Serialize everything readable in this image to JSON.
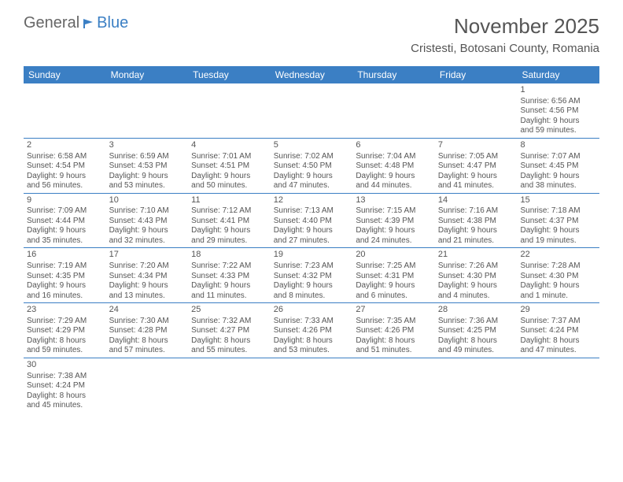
{
  "logo": {
    "general": "General",
    "blue": "Blue"
  },
  "title": "November 2025",
  "subtitle": "Cristesti, Botosani County, Romania",
  "colors": {
    "header_bg": "#3b7fc4",
    "header_text": "#ffffff",
    "border": "#3b7fc4",
    "text": "#555555"
  },
  "day_headers": [
    "Sunday",
    "Monday",
    "Tuesday",
    "Wednesday",
    "Thursday",
    "Friday",
    "Saturday"
  ],
  "weeks": [
    [
      null,
      null,
      null,
      null,
      null,
      null,
      {
        "n": "1",
        "sr": "Sunrise: 6:56 AM",
        "ss": "Sunset: 4:56 PM",
        "d1": "Daylight: 9 hours",
        "d2": "and 59 minutes."
      }
    ],
    [
      {
        "n": "2",
        "sr": "Sunrise: 6:58 AM",
        "ss": "Sunset: 4:54 PM",
        "d1": "Daylight: 9 hours",
        "d2": "and 56 minutes."
      },
      {
        "n": "3",
        "sr": "Sunrise: 6:59 AM",
        "ss": "Sunset: 4:53 PM",
        "d1": "Daylight: 9 hours",
        "d2": "and 53 minutes."
      },
      {
        "n": "4",
        "sr": "Sunrise: 7:01 AM",
        "ss": "Sunset: 4:51 PM",
        "d1": "Daylight: 9 hours",
        "d2": "and 50 minutes."
      },
      {
        "n": "5",
        "sr": "Sunrise: 7:02 AM",
        "ss": "Sunset: 4:50 PM",
        "d1": "Daylight: 9 hours",
        "d2": "and 47 minutes."
      },
      {
        "n": "6",
        "sr": "Sunrise: 7:04 AM",
        "ss": "Sunset: 4:48 PM",
        "d1": "Daylight: 9 hours",
        "d2": "and 44 minutes."
      },
      {
        "n": "7",
        "sr": "Sunrise: 7:05 AM",
        "ss": "Sunset: 4:47 PM",
        "d1": "Daylight: 9 hours",
        "d2": "and 41 minutes."
      },
      {
        "n": "8",
        "sr": "Sunrise: 7:07 AM",
        "ss": "Sunset: 4:45 PM",
        "d1": "Daylight: 9 hours",
        "d2": "and 38 minutes."
      }
    ],
    [
      {
        "n": "9",
        "sr": "Sunrise: 7:09 AM",
        "ss": "Sunset: 4:44 PM",
        "d1": "Daylight: 9 hours",
        "d2": "and 35 minutes."
      },
      {
        "n": "10",
        "sr": "Sunrise: 7:10 AM",
        "ss": "Sunset: 4:43 PM",
        "d1": "Daylight: 9 hours",
        "d2": "and 32 minutes."
      },
      {
        "n": "11",
        "sr": "Sunrise: 7:12 AM",
        "ss": "Sunset: 4:41 PM",
        "d1": "Daylight: 9 hours",
        "d2": "and 29 minutes."
      },
      {
        "n": "12",
        "sr": "Sunrise: 7:13 AM",
        "ss": "Sunset: 4:40 PM",
        "d1": "Daylight: 9 hours",
        "d2": "and 27 minutes."
      },
      {
        "n": "13",
        "sr": "Sunrise: 7:15 AM",
        "ss": "Sunset: 4:39 PM",
        "d1": "Daylight: 9 hours",
        "d2": "and 24 minutes."
      },
      {
        "n": "14",
        "sr": "Sunrise: 7:16 AM",
        "ss": "Sunset: 4:38 PM",
        "d1": "Daylight: 9 hours",
        "d2": "and 21 minutes."
      },
      {
        "n": "15",
        "sr": "Sunrise: 7:18 AM",
        "ss": "Sunset: 4:37 PM",
        "d1": "Daylight: 9 hours",
        "d2": "and 19 minutes."
      }
    ],
    [
      {
        "n": "16",
        "sr": "Sunrise: 7:19 AM",
        "ss": "Sunset: 4:35 PM",
        "d1": "Daylight: 9 hours",
        "d2": "and 16 minutes."
      },
      {
        "n": "17",
        "sr": "Sunrise: 7:20 AM",
        "ss": "Sunset: 4:34 PM",
        "d1": "Daylight: 9 hours",
        "d2": "and 13 minutes."
      },
      {
        "n": "18",
        "sr": "Sunrise: 7:22 AM",
        "ss": "Sunset: 4:33 PM",
        "d1": "Daylight: 9 hours",
        "d2": "and 11 minutes."
      },
      {
        "n": "19",
        "sr": "Sunrise: 7:23 AM",
        "ss": "Sunset: 4:32 PM",
        "d1": "Daylight: 9 hours",
        "d2": "and 8 minutes."
      },
      {
        "n": "20",
        "sr": "Sunrise: 7:25 AM",
        "ss": "Sunset: 4:31 PM",
        "d1": "Daylight: 9 hours",
        "d2": "and 6 minutes."
      },
      {
        "n": "21",
        "sr": "Sunrise: 7:26 AM",
        "ss": "Sunset: 4:30 PM",
        "d1": "Daylight: 9 hours",
        "d2": "and 4 minutes."
      },
      {
        "n": "22",
        "sr": "Sunrise: 7:28 AM",
        "ss": "Sunset: 4:30 PM",
        "d1": "Daylight: 9 hours",
        "d2": "and 1 minute."
      }
    ],
    [
      {
        "n": "23",
        "sr": "Sunrise: 7:29 AM",
        "ss": "Sunset: 4:29 PM",
        "d1": "Daylight: 8 hours",
        "d2": "and 59 minutes."
      },
      {
        "n": "24",
        "sr": "Sunrise: 7:30 AM",
        "ss": "Sunset: 4:28 PM",
        "d1": "Daylight: 8 hours",
        "d2": "and 57 minutes."
      },
      {
        "n": "25",
        "sr": "Sunrise: 7:32 AM",
        "ss": "Sunset: 4:27 PM",
        "d1": "Daylight: 8 hours",
        "d2": "and 55 minutes."
      },
      {
        "n": "26",
        "sr": "Sunrise: 7:33 AM",
        "ss": "Sunset: 4:26 PM",
        "d1": "Daylight: 8 hours",
        "d2": "and 53 minutes."
      },
      {
        "n": "27",
        "sr": "Sunrise: 7:35 AM",
        "ss": "Sunset: 4:26 PM",
        "d1": "Daylight: 8 hours",
        "d2": "and 51 minutes."
      },
      {
        "n": "28",
        "sr": "Sunrise: 7:36 AM",
        "ss": "Sunset: 4:25 PM",
        "d1": "Daylight: 8 hours",
        "d2": "and 49 minutes."
      },
      {
        "n": "29",
        "sr": "Sunrise: 7:37 AM",
        "ss": "Sunset: 4:24 PM",
        "d1": "Daylight: 8 hours",
        "d2": "and 47 minutes."
      }
    ],
    [
      {
        "n": "30",
        "sr": "Sunrise: 7:38 AM",
        "ss": "Sunset: 4:24 PM",
        "d1": "Daylight: 8 hours",
        "d2": "and 45 minutes."
      },
      null,
      null,
      null,
      null,
      null,
      null
    ]
  ]
}
